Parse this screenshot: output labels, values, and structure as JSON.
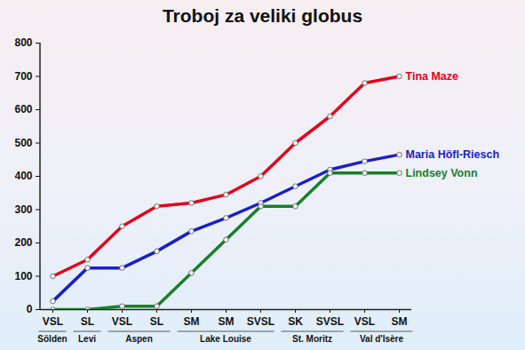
{
  "chart_data": {
    "type": "line",
    "title": "Troboj za veliki globus",
    "categories": [
      "VSL",
      "SL",
      "VSL",
      "SL",
      "SM",
      "SM",
      "SVSL",
      "SK",
      "SVSL",
      "VSL",
      "SM"
    ],
    "venues": [
      "Sölden",
      "Levi",
      "Aspen",
      "Aspen",
      "Lake Louise",
      "Lake Louise",
      "Lake Louise",
      "St. Moritz",
      "St. Moritz",
      "Val d'Isère",
      "Val d'Isère"
    ],
    "series": [
      {
        "name": "Tina Maze",
        "color": "#e3001b",
        "values": [
          100,
          150,
          250,
          310,
          320,
          345,
          400,
          500,
          580,
          680,
          700
        ]
      },
      {
        "name": "Maria Höfl-Riesch",
        "color": "#1c1fc4",
        "values": [
          25,
          125,
          125,
          175,
          235,
          275,
          320,
          370,
          420,
          445,
          465
        ]
      },
      {
        "name": "Lindsey Vonn",
        "color": "#17802a",
        "values": [
          0,
          0,
          10,
          10,
          110,
          210,
          310,
          310,
          410,
          410,
          410
        ]
      }
    ],
    "ylim": [
      0,
      800
    ],
    "yticks": [
      0,
      100,
      200,
      300,
      400,
      500,
      600,
      700,
      800
    ],
    "grid": false,
    "marker": "circle"
  }
}
